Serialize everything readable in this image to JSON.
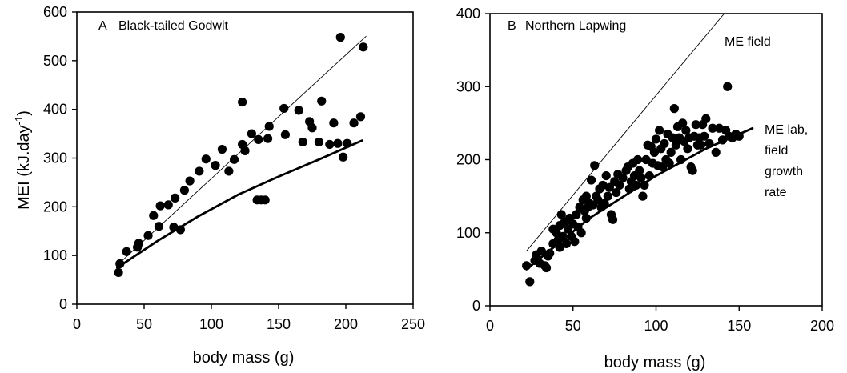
{
  "chart_data": [
    {
      "type": "scatter",
      "panel_label": "A",
      "title": "Black-tailed Godwit",
      "xlabel": "body mass (g)",
      "ylabel_main": "MEI (kJ.day",
      "ylabel_sup": "-1",
      "ylabel_end": ")",
      "xlim": [
        0,
        250
      ],
      "ylim": [
        0,
        600
      ],
      "xticks": [
        0,
        50,
        100,
        150,
        200,
        250
      ],
      "yticks": [
        0,
        100,
        200,
        300,
        400,
        500,
        600
      ],
      "grid": false,
      "series": [
        {
          "kind": "points",
          "points": [
            [
              31,
              65
            ],
            [
              32,
              83
            ],
            [
              37,
              108
            ],
            [
              45,
              117
            ],
            [
              46,
              125
            ],
            [
              53,
              141
            ],
            [
              57,
              182
            ],
            [
              61,
              160
            ],
            [
              62,
              202
            ],
            [
              68,
              204
            ],
            [
              72,
              158
            ],
            [
              73,
              218
            ],
            [
              77,
              153
            ],
            [
              80,
              234
            ],
            [
              84,
              253
            ],
            [
              91,
              273
            ],
            [
              96,
              298
            ],
            [
              103,
              285
            ],
            [
              108,
              318
            ],
            [
              113,
              273
            ],
            [
              117,
              297
            ],
            [
              123,
              415
            ],
            [
              123,
              328
            ],
            [
              125,
              315
            ],
            [
              130,
              350
            ],
            [
              134,
              214
            ],
            [
              135,
              338
            ],
            [
              137,
              214
            ],
            [
              140,
              214
            ],
            [
              142,
              340
            ],
            [
              143,
              365
            ],
            [
              154,
              402
            ],
            [
              155,
              348
            ],
            [
              165,
              398
            ],
            [
              168,
              333
            ],
            [
              173,
              375
            ],
            [
              175,
              362
            ],
            [
              180,
              333
            ],
            [
              182,
              417
            ],
            [
              188,
              328
            ],
            [
              191,
              372
            ],
            [
              194,
              330
            ],
            [
              196,
              548
            ],
            [
              198,
              302
            ],
            [
              201,
              330
            ],
            [
              206,
              372
            ],
            [
              211,
              385
            ],
            [
              213,
              528
            ]
          ]
        },
        {
          "kind": "line",
          "weight": "thin",
          "points": [
            [
              30,
              80
            ],
            [
              215,
              550
            ]
          ]
        },
        {
          "kind": "curve",
          "weight": "thick",
          "points": [
            [
              30,
              75
            ],
            [
              60,
              130
            ],
            [
              90,
              180
            ],
            [
              120,
              225
            ],
            [
              150,
              262
            ],
            [
              180,
              297
            ],
            [
              212,
              336
            ]
          ]
        }
      ],
      "annotations": []
    },
    {
      "type": "scatter",
      "panel_label": "B",
      "title": "Northern Lapwing",
      "xlabel": "body mass (g)",
      "xlim": [
        0,
        200
      ],
      "ylim": [
        0,
        400
      ],
      "xticks": [
        0,
        50,
        100,
        150,
        200
      ],
      "yticks": [
        0,
        100,
        200,
        300,
        400
      ],
      "grid": false,
      "series": [
        {
          "kind": "points",
          "points": [
            [
              22,
              55
            ],
            [
              24,
              33
            ],
            [
              27,
              62
            ],
            [
              28,
              70
            ],
            [
              30,
              58
            ],
            [
              31,
              75
            ],
            [
              33,
              55
            ],
            [
              34,
              52
            ],
            [
              35,
              68
            ],
            [
              36,
              72
            ],
            [
              38,
              85
            ],
            [
              38,
              105
            ],
            [
              40,
              100
            ],
            [
              41,
              90
            ],
            [
              42,
              110
            ],
            [
              42,
              80
            ],
            [
              43,
              125
            ],
            [
              44,
              95
            ],
            [
              45,
              115
            ],
            [
              46,
              85
            ],
            [
              47,
              105
            ],
            [
              48,
              120
            ],
            [
              49,
              95
            ],
            [
              50,
              112
            ],
            [
              51,
              88
            ],
            [
              52,
              125
            ],
            [
              53,
              108
            ],
            [
              54,
              135
            ],
            [
              55,
              100
            ],
            [
              56,
              145
            ],
            [
              57,
              130
            ],
            [
              58,
              150
            ],
            [
              58,
              120
            ],
            [
              59,
              135
            ],
            [
              60,
              140
            ],
            [
              61,
              172
            ],
            [
              62,
              138
            ],
            [
              63,
              192
            ],
            [
              64,
              150
            ],
            [
              65,
              145
            ],
            [
              66,
              160
            ],
            [
              67,
              135
            ],
            [
              68,
              165
            ],
            [
              69,
              140
            ],
            [
              70,
              178
            ],
            [
              71,
              150
            ],
            [
              72,
              162
            ],
            [
              73,
              125
            ],
            [
              74,
              118
            ],
            [
              75,
              170
            ],
            [
              76,
              155
            ],
            [
              77,
              180
            ],
            [
              78,
              165
            ],
            [
              80,
              175
            ],
            [
              82,
              185
            ],
            [
              83,
              190
            ],
            [
              84,
              160
            ],
            [
              85,
              170
            ],
            [
              86,
              195
            ],
            [
              87,
              178
            ],
            [
              88,
              165
            ],
            [
              89,
              200
            ],
            [
              90,
              185
            ],
            [
              91,
              175
            ],
            [
              92,
              150
            ],
            [
              93,
              165
            ],
            [
              94,
              200
            ],
            [
              95,
              220
            ],
            [
              96,
              178
            ],
            [
              97,
              218
            ],
            [
              98,
              195
            ],
            [
              99,
              210
            ],
            [
              100,
              228
            ],
            [
              101,
              192
            ],
            [
              102,
              240
            ],
            [
              103,
              215
            ],
            [
              104,
              190
            ],
            [
              105,
              222
            ],
            [
              106,
              200
            ],
            [
              107,
              235
            ],
            [
              108,
              195
            ],
            [
              109,
              210
            ],
            [
              110,
              230
            ],
            [
              111,
              270
            ],
            [
              112,
              220
            ],
            [
              113,
              245
            ],
            [
              114,
              230
            ],
            [
              115,
              200
            ],
            [
              116,
              250
            ],
            [
              117,
              225
            ],
            [
              118,
              240
            ],
            [
              119,
              215
            ],
            [
              120,
              230
            ],
            [
              121,
              190
            ],
            [
              122,
              185
            ],
            [
              123,
              232
            ],
            [
              124,
              248
            ],
            [
              125,
              220
            ],
            [
              126,
              230
            ],
            [
              127,
              220
            ],
            [
              128,
              248
            ],
            [
              129,
              232
            ],
            [
              130,
              256
            ],
            [
              132,
              222
            ],
            [
              134,
              243
            ],
            [
              136,
              210
            ],
            [
              138,
              243
            ],
            [
              140,
              227
            ],
            [
              142,
              240
            ],
            [
              143,
              300
            ],
            [
              144,
              232
            ],
            [
              146,
              230
            ],
            [
              148,
              235
            ],
            [
              150,
              232
            ]
          ]
        },
        {
          "kind": "line",
          "weight": "thin",
          "label": "ME field",
          "points": [
            [
              22,
              75
            ],
            [
              141,
              400
            ]
          ]
        },
        {
          "kind": "curve",
          "weight": "thick",
          "label_lines": [
            "ME lab,",
            "field",
            "growth",
            "rate"
          ],
          "points": [
            [
              22,
              50
            ],
            [
              60,
              120
            ],
            [
              100,
              178
            ],
            [
              130,
              215
            ],
            [
              158,
              243
            ]
          ]
        }
      ]
    }
  ]
}
